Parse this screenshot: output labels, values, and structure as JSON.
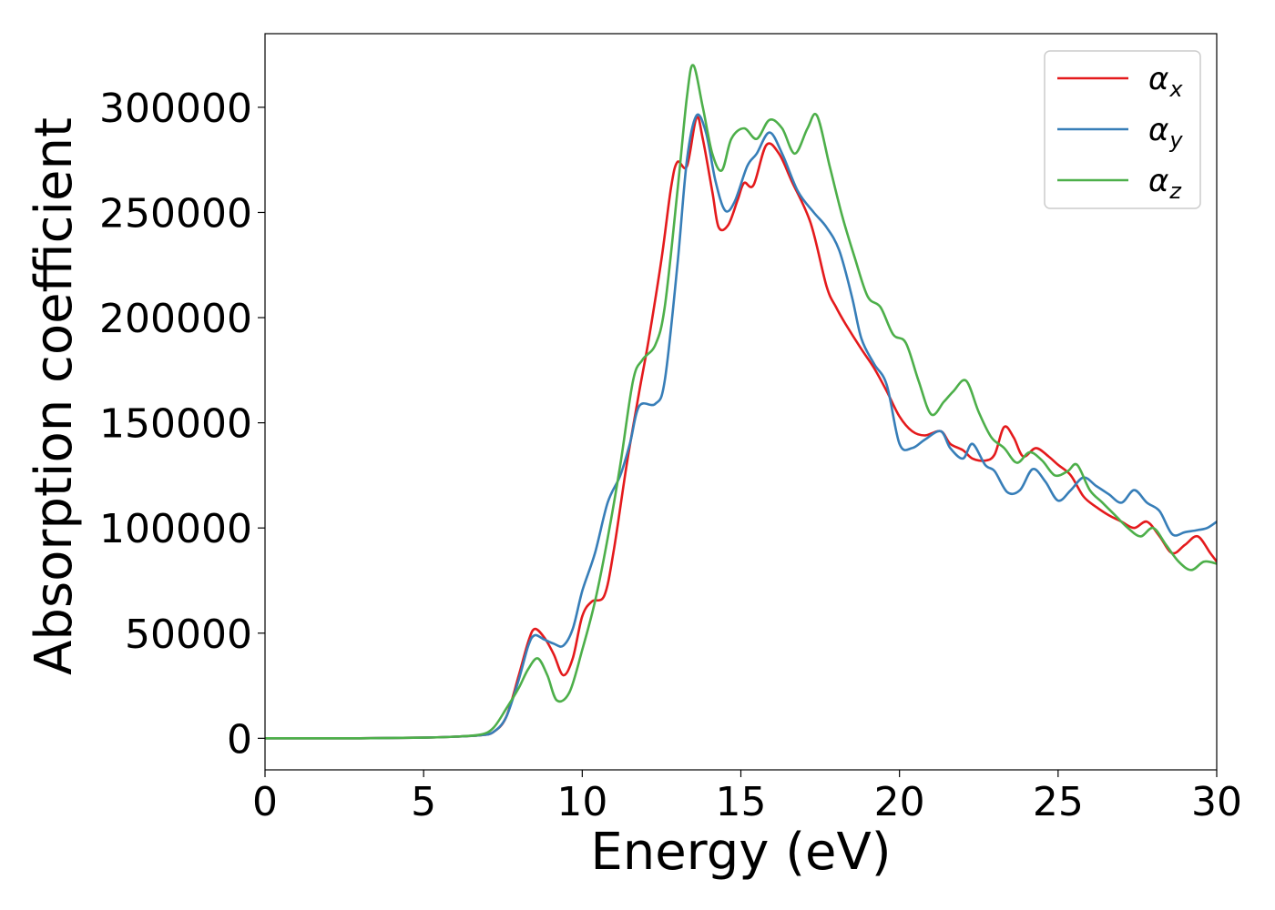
{
  "chart_data": {
    "type": "line",
    "title": "",
    "xlabel": "Energy (eV)",
    "ylabel": "Absorption coefficient",
    "xlim": [
      0,
      30
    ],
    "ylim": [
      -15000,
      335000
    ],
    "xticks": [
      0,
      5,
      10,
      15,
      20,
      25,
      30
    ],
    "yticks": [
      0,
      50000,
      100000,
      150000,
      200000,
      250000,
      300000
    ],
    "grid": false,
    "legend_position": "top-right",
    "series": [
      {
        "name": "α",
        "subscript": "x",
        "color": "#e41a1c",
        "points": [
          [
            0,
            0
          ],
          [
            3,
            0
          ],
          [
            5,
            300
          ],
          [
            6,
            800
          ],
          [
            6.8,
            1500
          ],
          [
            7.2,
            3000
          ],
          [
            7.6,
            10000
          ],
          [
            8,
            30000
          ],
          [
            8.3,
            46000
          ],
          [
            8.5,
            52000
          ],
          [
            8.8,
            48000
          ],
          [
            9.1,
            40000
          ],
          [
            9.4,
            30000
          ],
          [
            9.7,
            38000
          ],
          [
            10,
            58000
          ],
          [
            10.3,
            65000
          ],
          [
            10.7,
            68000
          ],
          [
            11,
            90000
          ],
          [
            11.4,
            130000
          ],
          [
            11.8,
            165000
          ],
          [
            12.1,
            190000
          ],
          [
            12.5,
            228000
          ],
          [
            12.8,
            262000
          ],
          [
            13,
            274000
          ],
          [
            13.3,
            272000
          ],
          [
            13.6,
            295000
          ],
          [
            13.8,
            285000
          ],
          [
            14.1,
            260000
          ],
          [
            14.3,
            243000
          ],
          [
            14.6,
            244000
          ],
          [
            14.9,
            256000
          ],
          [
            15.1,
            264000
          ],
          [
            15.4,
            263000
          ],
          [
            15.8,
            282000
          ],
          [
            16.2,
            278000
          ],
          [
            16.6,
            265000
          ],
          [
            17.2,
            245000
          ],
          [
            17.7,
            215000
          ],
          [
            18,
            205000
          ],
          [
            18.3,
            197000
          ],
          [
            18.8,
            185000
          ],
          [
            19.2,
            176000
          ],
          [
            19.6,
            165000
          ],
          [
            20,
            153000
          ],
          [
            20.4,
            146000
          ],
          [
            20.8,
            144000
          ],
          [
            21.3,
            146000
          ],
          [
            21.6,
            140000
          ],
          [
            22,
            137000
          ],
          [
            22.3,
            133000
          ],
          [
            22.7,
            132000
          ],
          [
            23,
            135000
          ],
          [
            23.3,
            148000
          ],
          [
            23.6,
            143000
          ],
          [
            23.9,
            134000
          ],
          [
            24.3,
            138000
          ],
          [
            24.7,
            134000
          ],
          [
            25,
            130000
          ],
          [
            25.4,
            125000
          ],
          [
            25.8,
            115000
          ],
          [
            26.2,
            110000
          ],
          [
            26.6,
            106000
          ],
          [
            27,
            103000
          ],
          [
            27.4,
            100000
          ],
          [
            27.8,
            103000
          ],
          [
            28.2,
            96000
          ],
          [
            28.6,
            88000
          ],
          [
            29,
            92000
          ],
          [
            29.4,
            96000
          ],
          [
            29.8,
            88000
          ],
          [
            30,
            84000
          ]
        ]
      },
      {
        "name": "α",
        "subscript": "y",
        "color": "#377eb8",
        "points": [
          [
            0,
            0
          ],
          [
            3,
            0
          ],
          [
            5,
            300
          ],
          [
            6,
            800
          ],
          [
            6.8,
            1500
          ],
          [
            7.2,
            3000
          ],
          [
            7.6,
            10000
          ],
          [
            8,
            28000
          ],
          [
            8.3,
            44000
          ],
          [
            8.5,
            49000
          ],
          [
            8.8,
            47000
          ],
          [
            9.1,
            45000
          ],
          [
            9.4,
            44000
          ],
          [
            9.7,
            52000
          ],
          [
            10,
            70000
          ],
          [
            10.4,
            88000
          ],
          [
            10.8,
            112000
          ],
          [
            11.2,
            125000
          ],
          [
            11.5,
            140000
          ],
          [
            11.8,
            158000
          ],
          [
            12.3,
            159000
          ],
          [
            12.6,
            170000
          ],
          [
            13,
            225000
          ],
          [
            13.3,
            275000
          ],
          [
            13.6,
            296000
          ],
          [
            13.9,
            288000
          ],
          [
            14.2,
            265000
          ],
          [
            14.5,
            251000
          ],
          [
            14.8,
            255000
          ],
          [
            15.2,
            272000
          ],
          [
            15.5,
            278000
          ],
          [
            15.9,
            288000
          ],
          [
            16.3,
            278000
          ],
          [
            16.8,
            260000
          ],
          [
            17.3,
            250000
          ],
          [
            17.7,
            243000
          ],
          [
            18.1,
            232000
          ],
          [
            18.5,
            210000
          ],
          [
            18.8,
            190000
          ],
          [
            19.2,
            178000
          ],
          [
            19.6,
            168000
          ],
          [
            20,
            140000
          ],
          [
            20.4,
            138000
          ],
          [
            20.8,
            142000
          ],
          [
            21.3,
            146000
          ],
          [
            21.6,
            138000
          ],
          [
            22,
            133000
          ],
          [
            22.3,
            140000
          ],
          [
            22.7,
            130000
          ],
          [
            23,
            127000
          ],
          [
            23.4,
            117000
          ],
          [
            23.8,
            118000
          ],
          [
            24.2,
            128000
          ],
          [
            24.6,
            122000
          ],
          [
            25,
            113000
          ],
          [
            25.4,
            118000
          ],
          [
            25.8,
            124000
          ],
          [
            26.2,
            120000
          ],
          [
            26.6,
            116000
          ],
          [
            27,
            112000
          ],
          [
            27.4,
            118000
          ],
          [
            27.8,
            112000
          ],
          [
            28.2,
            108000
          ],
          [
            28.6,
            97000
          ],
          [
            29,
            98000
          ],
          [
            29.4,
            99000
          ],
          [
            29.7,
            100000
          ],
          [
            30,
            103000
          ]
        ]
      },
      {
        "name": "α",
        "subscript": "z",
        "color": "#4daf4a",
        "points": [
          [
            0,
            0
          ],
          [
            3,
            0
          ],
          [
            5,
            300
          ],
          [
            6,
            800
          ],
          [
            6.8,
            1800
          ],
          [
            7.2,
            5000
          ],
          [
            7.6,
            14000
          ],
          [
            8,
            24000
          ],
          [
            8.3,
            33000
          ],
          [
            8.6,
            38000
          ],
          [
            8.9,
            30000
          ],
          [
            9.2,
            18000
          ],
          [
            9.6,
            22000
          ],
          [
            10,
            42000
          ],
          [
            10.4,
            65000
          ],
          [
            10.8,
            95000
          ],
          [
            11.2,
            130000
          ],
          [
            11.6,
            170000
          ],
          [
            11.9,
            180000
          ],
          [
            12.3,
            187000
          ],
          [
            12.6,
            205000
          ],
          [
            13,
            260000
          ],
          [
            13.3,
            305000
          ],
          [
            13.5,
            320000
          ],
          [
            13.8,
            300000
          ],
          [
            14.1,
            278000
          ],
          [
            14.4,
            270000
          ],
          [
            14.7,
            285000
          ],
          [
            15.1,
            290000
          ],
          [
            15.5,
            285000
          ],
          [
            15.9,
            294000
          ],
          [
            16.3,
            290000
          ],
          [
            16.7,
            278000
          ],
          [
            17.1,
            290000
          ],
          [
            17.4,
            296000
          ],
          [
            17.8,
            272000
          ],
          [
            18.2,
            248000
          ],
          [
            18.6,
            228000
          ],
          [
            19,
            210000
          ],
          [
            19.4,
            205000
          ],
          [
            19.8,
            192000
          ],
          [
            20.2,
            188000
          ],
          [
            20.6,
            170000
          ],
          [
            21,
            154000
          ],
          [
            21.4,
            160000
          ],
          [
            21.7,
            165000
          ],
          [
            22.1,
            170000
          ],
          [
            22.5,
            155000
          ],
          [
            22.9,
            143000
          ],
          [
            23.3,
            138000
          ],
          [
            23.7,
            131000
          ],
          [
            24.1,
            136000
          ],
          [
            24.5,
            132000
          ],
          [
            24.9,
            125000
          ],
          [
            25.3,
            127000
          ],
          [
            25.6,
            130000
          ],
          [
            26,
            118000
          ],
          [
            26.4,
            112000
          ],
          [
            26.8,
            106000
          ],
          [
            27.2,
            100000
          ],
          [
            27.6,
            96000
          ],
          [
            28,
            100000
          ],
          [
            28.4,
            92000
          ],
          [
            28.8,
            84000
          ],
          [
            29.2,
            80000
          ],
          [
            29.6,
            84000
          ],
          [
            30,
            83000
          ]
        ]
      }
    ]
  }
}
